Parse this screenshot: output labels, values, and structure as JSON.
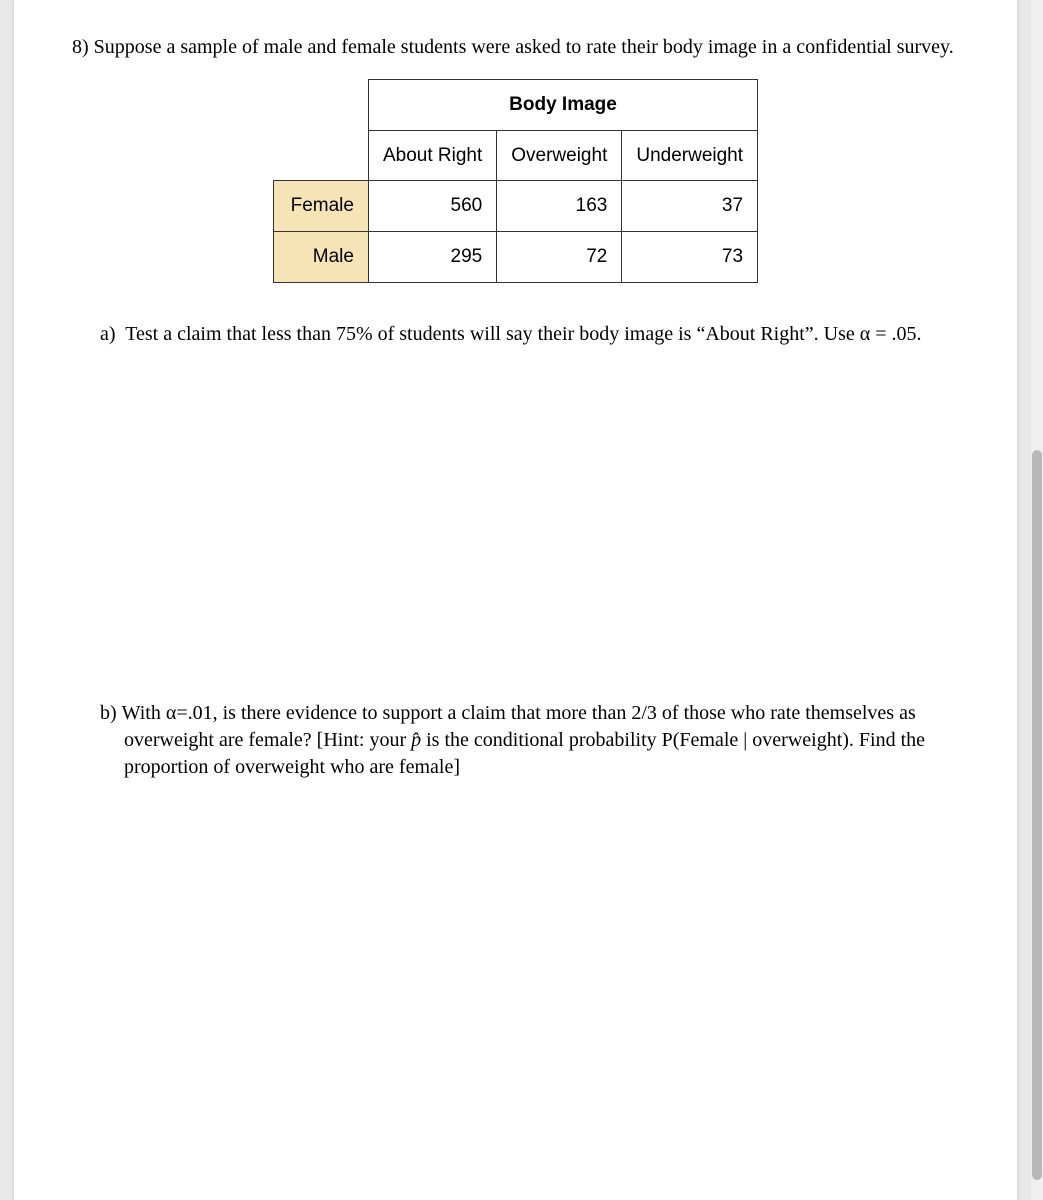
{
  "question": {
    "number_label": "8)",
    "intro": "Suppose a sample of male and female students were asked to rate their body image in a confidential survey."
  },
  "table": {
    "super_header": "Body Image",
    "columns": [
      "About Right",
      "Overweight",
      "Underweight"
    ],
    "rows": [
      {
        "label": "Female",
        "values": [
          "560",
          "163",
          "37"
        ]
      },
      {
        "label": "Male",
        "values": [
          "295",
          "72",
          "73"
        ]
      }
    ]
  },
  "parts": {
    "a": {
      "label": "a)",
      "text": "Test a claim that less than 75% of students will say their body image is “About Right”. Use α = .05."
    },
    "b": {
      "label": "b)",
      "line1_pre": "With α=.01, is there evidence to support a claim that more than 2/3 of those who rate themselves as overweight are female?  [Hint: your ",
      "phat": "p̂",
      "line1_post": " is the conditional probability P(Female | overweight).   Find the proportion of overweight who are female]"
    }
  }
}
